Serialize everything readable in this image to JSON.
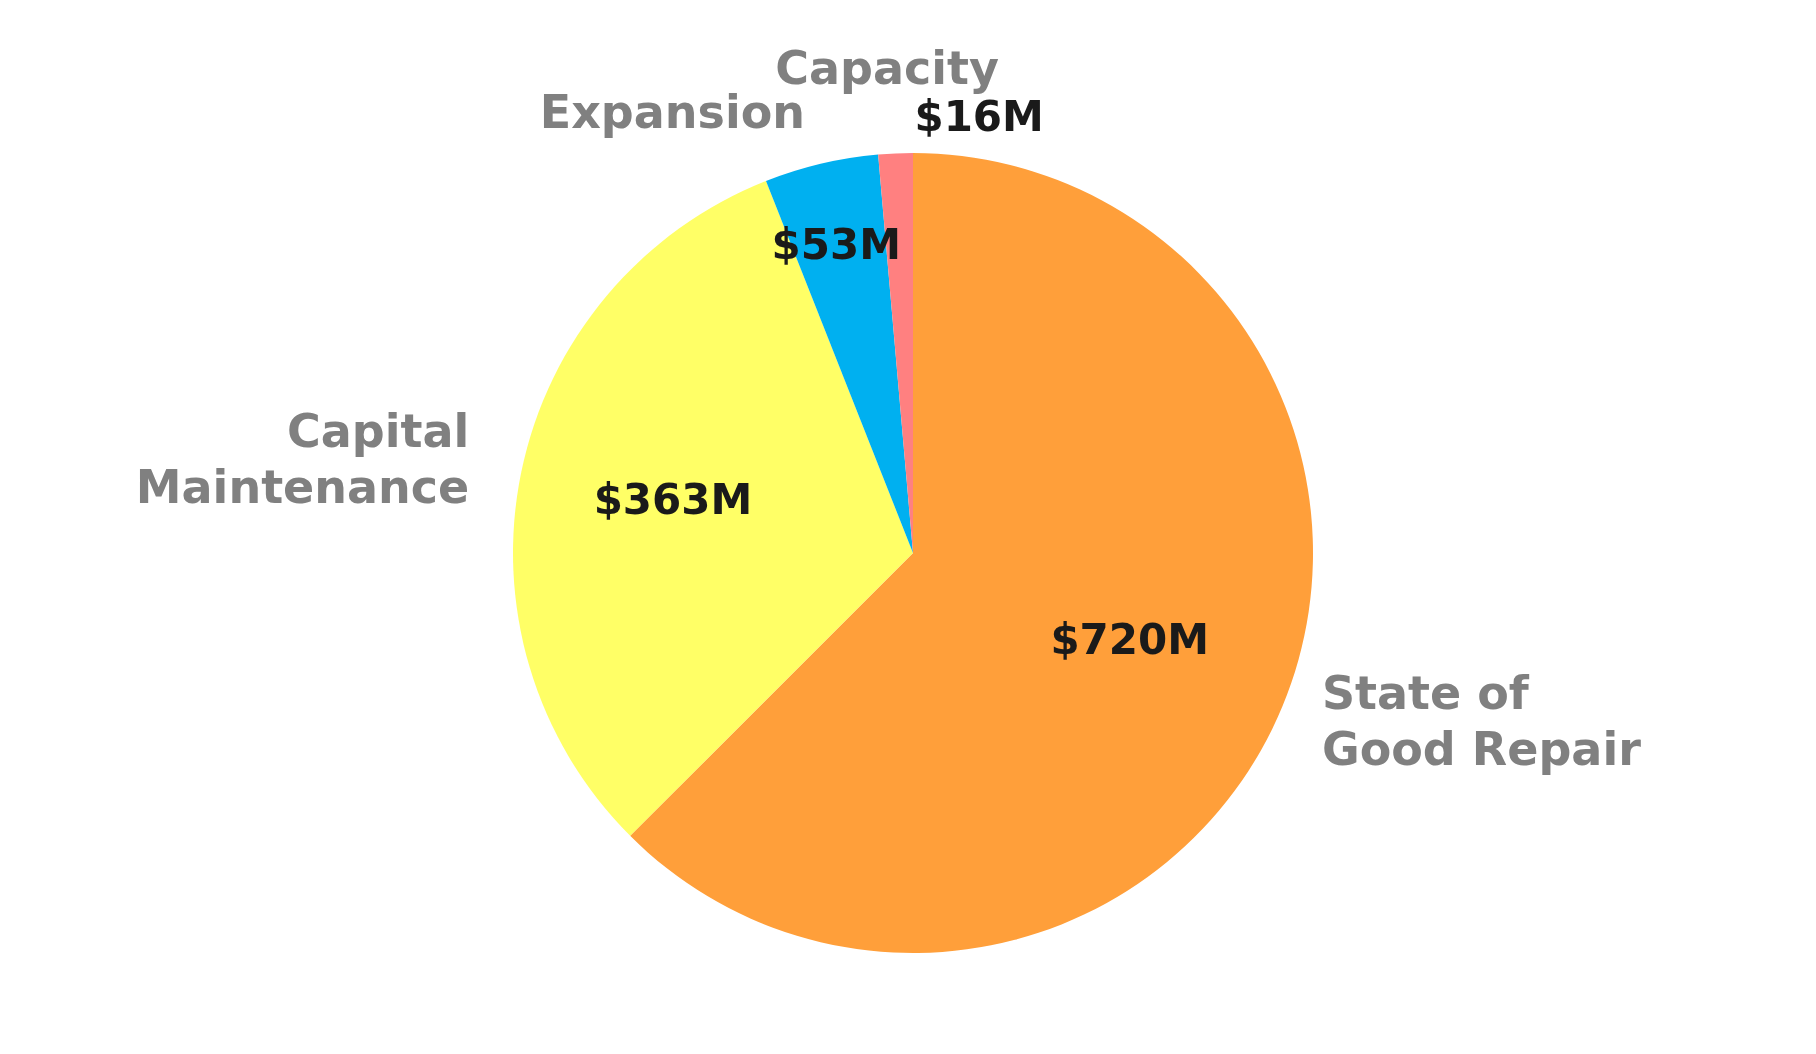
{
  "chart_data": {
    "type": "pie",
    "categories": [
      "State of Good Repair",
      "Capital Maintenance",
      "Expansion",
      "Capacity"
    ],
    "values": [
      720,
      363,
      53,
      16
    ],
    "value_labels": [
      "$720M",
      "$363M",
      "$53M",
      "$16M"
    ],
    "colors": [
      "#ff9f3a",
      "#ffff66",
      "#00b0f0",
      "#ff8080"
    ]
  }
}
